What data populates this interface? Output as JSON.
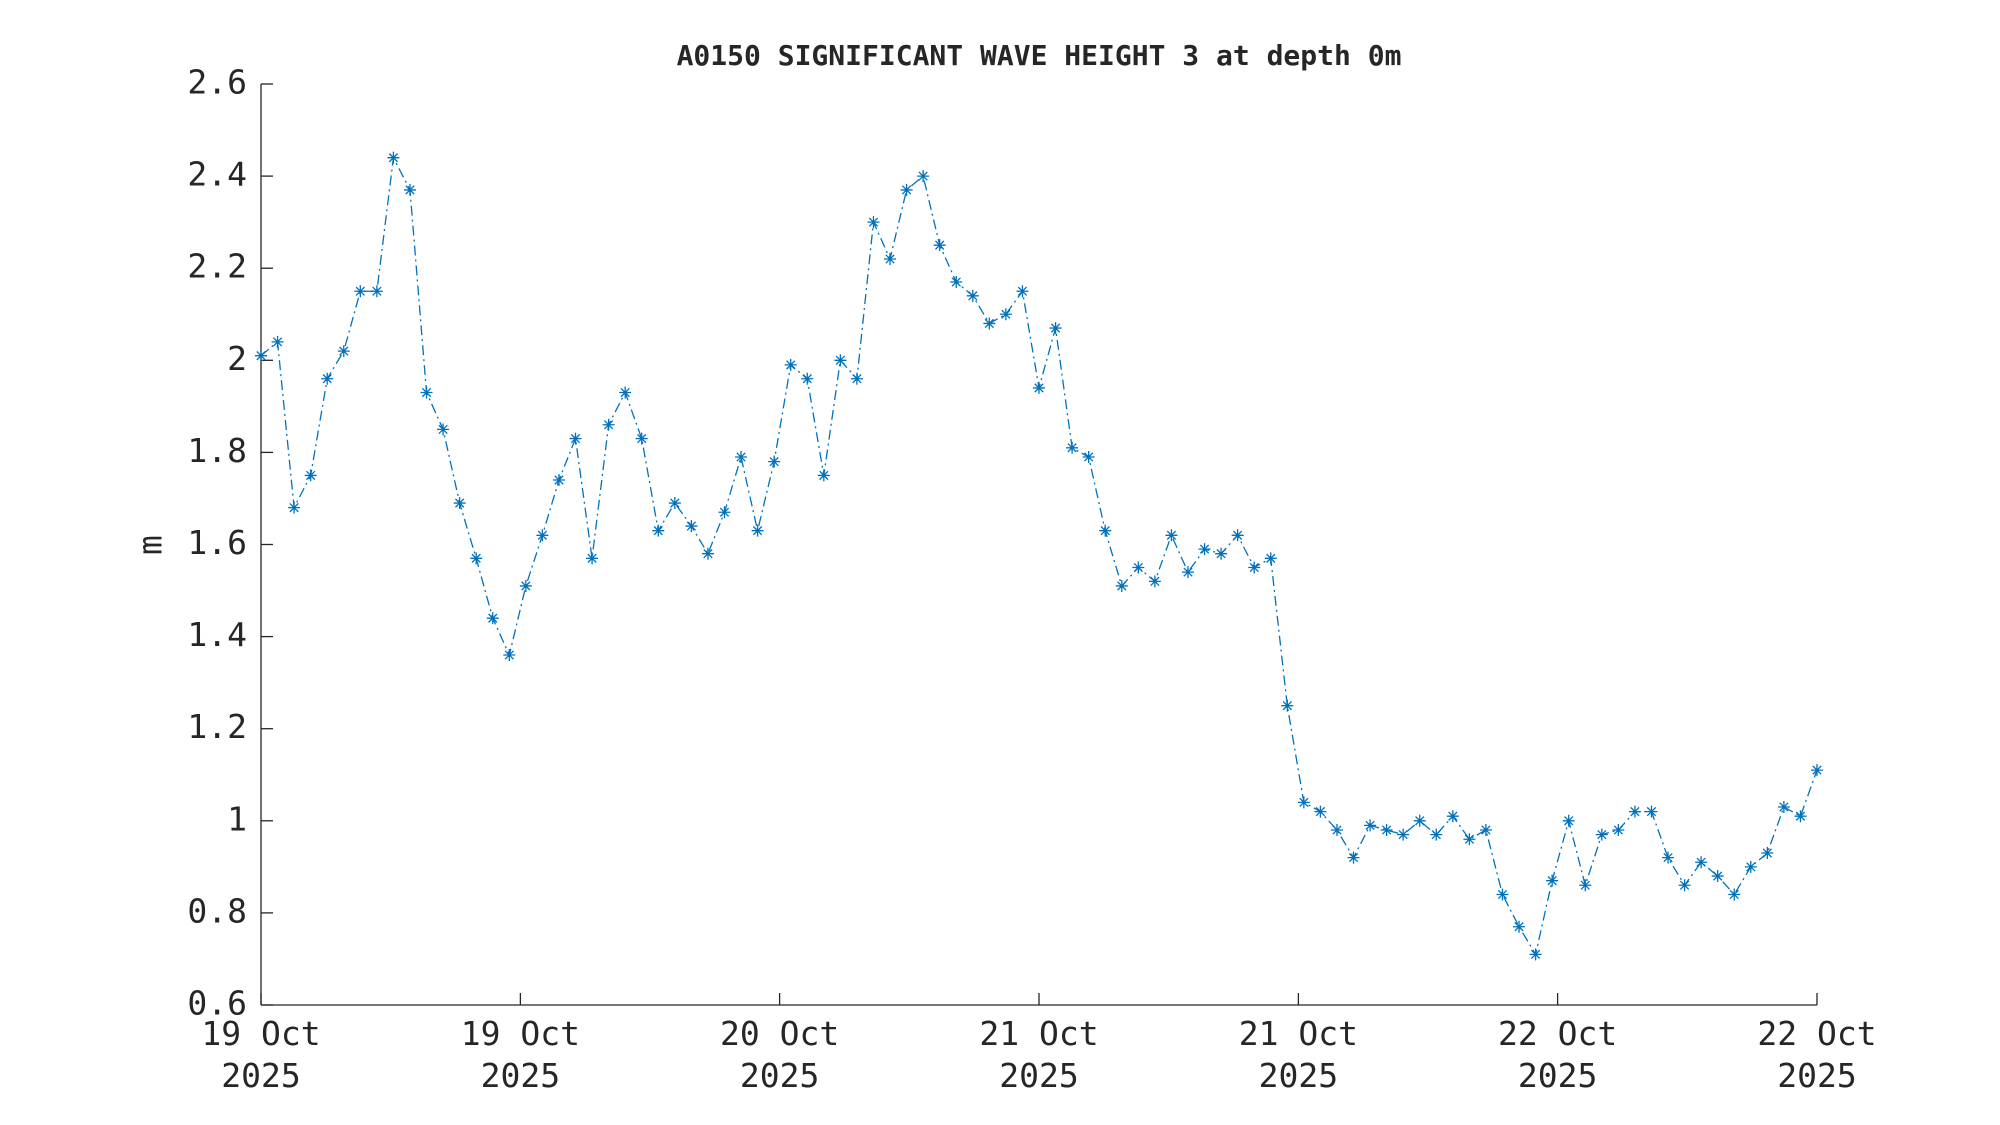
{
  "chart_data": {
    "type": "line",
    "title": "A0150 SIGNIFICANT WAVE HEIGHT 3 at depth 0m",
    "ylabel": "m",
    "x": [
      0,
      1,
      2,
      3,
      4,
      5,
      6,
      7,
      8,
      9,
      10,
      11,
      12,
      13,
      14,
      15,
      16,
      17,
      18,
      19,
      20,
      21,
      22,
      23,
      24,
      25,
      26,
      27,
      28,
      29,
      30,
      31,
      32,
      33,
      34,
      35,
      36,
      37,
      38,
      39,
      40,
      41,
      42,
      43,
      44,
      45,
      46,
      47,
      48,
      49,
      50,
      51,
      52,
      53,
      54,
      55,
      56,
      57,
      58,
      59,
      60,
      61,
      62,
      63,
      64,
      65,
      66,
      67,
      68,
      69,
      70,
      71,
      72,
      73,
      74,
      75,
      76,
      77,
      78,
      79,
      80,
      81,
      82,
      83,
      84,
      85,
      86,
      87,
      88,
      89,
      90,
      91,
      92,
      93,
      94
    ],
    "series": [
      {
        "color": "#0072bd",
        "values": [
          2.01,
          2.04,
          1.68,
          1.75,
          1.96,
          2.02,
          2.15,
          2.15,
          2.44,
          2.37,
          1.93,
          1.85,
          1.69,
          1.57,
          1.44,
          1.36,
          1.51,
          1.62,
          1.74,
          1.83,
          1.57,
          1.86,
          1.93,
          1.83,
          1.63,
          1.69,
          1.64,
          1.58,
          1.67,
          1.79,
          1.63,
          1.78,
          1.99,
          1.96,
          1.75,
          2.0,
          1.96,
          2.3,
          2.22,
          2.37,
          2.4,
          2.25,
          2.17,
          2.14,
          2.08,
          2.1,
          2.15,
          1.94,
          2.07,
          1.81,
          1.79,
          1.63,
          1.51,
          1.55,
          1.52,
          1.62,
          1.54,
          1.59,
          1.58,
          1.62,
          1.55,
          1.57,
          1.25,
          1.04,
          1.02,
          0.98,
          0.92,
          0.99,
          0.98,
          0.97,
          1.0,
          0.97,
          1.01,
          0.96,
          0.98,
          0.84,
          0.77,
          0.71,
          0.87,
          1.0,
          0.86,
          0.97,
          0.98,
          1.02,
          1.02,
          0.92,
          0.86,
          0.91,
          0.88,
          0.84,
          0.9,
          0.93,
          1.03,
          1.01,
          1.11
        ]
      }
    ],
    "xlim": [
      0,
      94
    ],
    "xticks": [
      {
        "value": 0,
        "label": "19 Oct\n2025"
      },
      {
        "value": 15.67,
        "label": "19 Oct\n2025"
      },
      {
        "value": 31.33,
        "label": "20 Oct\n2025"
      },
      {
        "value": 47,
        "label": "21 Oct\n2025"
      },
      {
        "value": 62.67,
        "label": "21 Oct\n2025"
      },
      {
        "value": 78.33,
        "label": "22 Oct\n2025"
      },
      {
        "value": 94,
        "label": "22 Oct\n2025"
      }
    ],
    "ylim": [
      0.6,
      2.6
    ],
    "yticks": [
      0.6,
      0.8,
      1,
      1.2,
      1.4,
      1.6,
      1.8,
      2,
      2.2,
      2.4,
      2.6
    ]
  }
}
